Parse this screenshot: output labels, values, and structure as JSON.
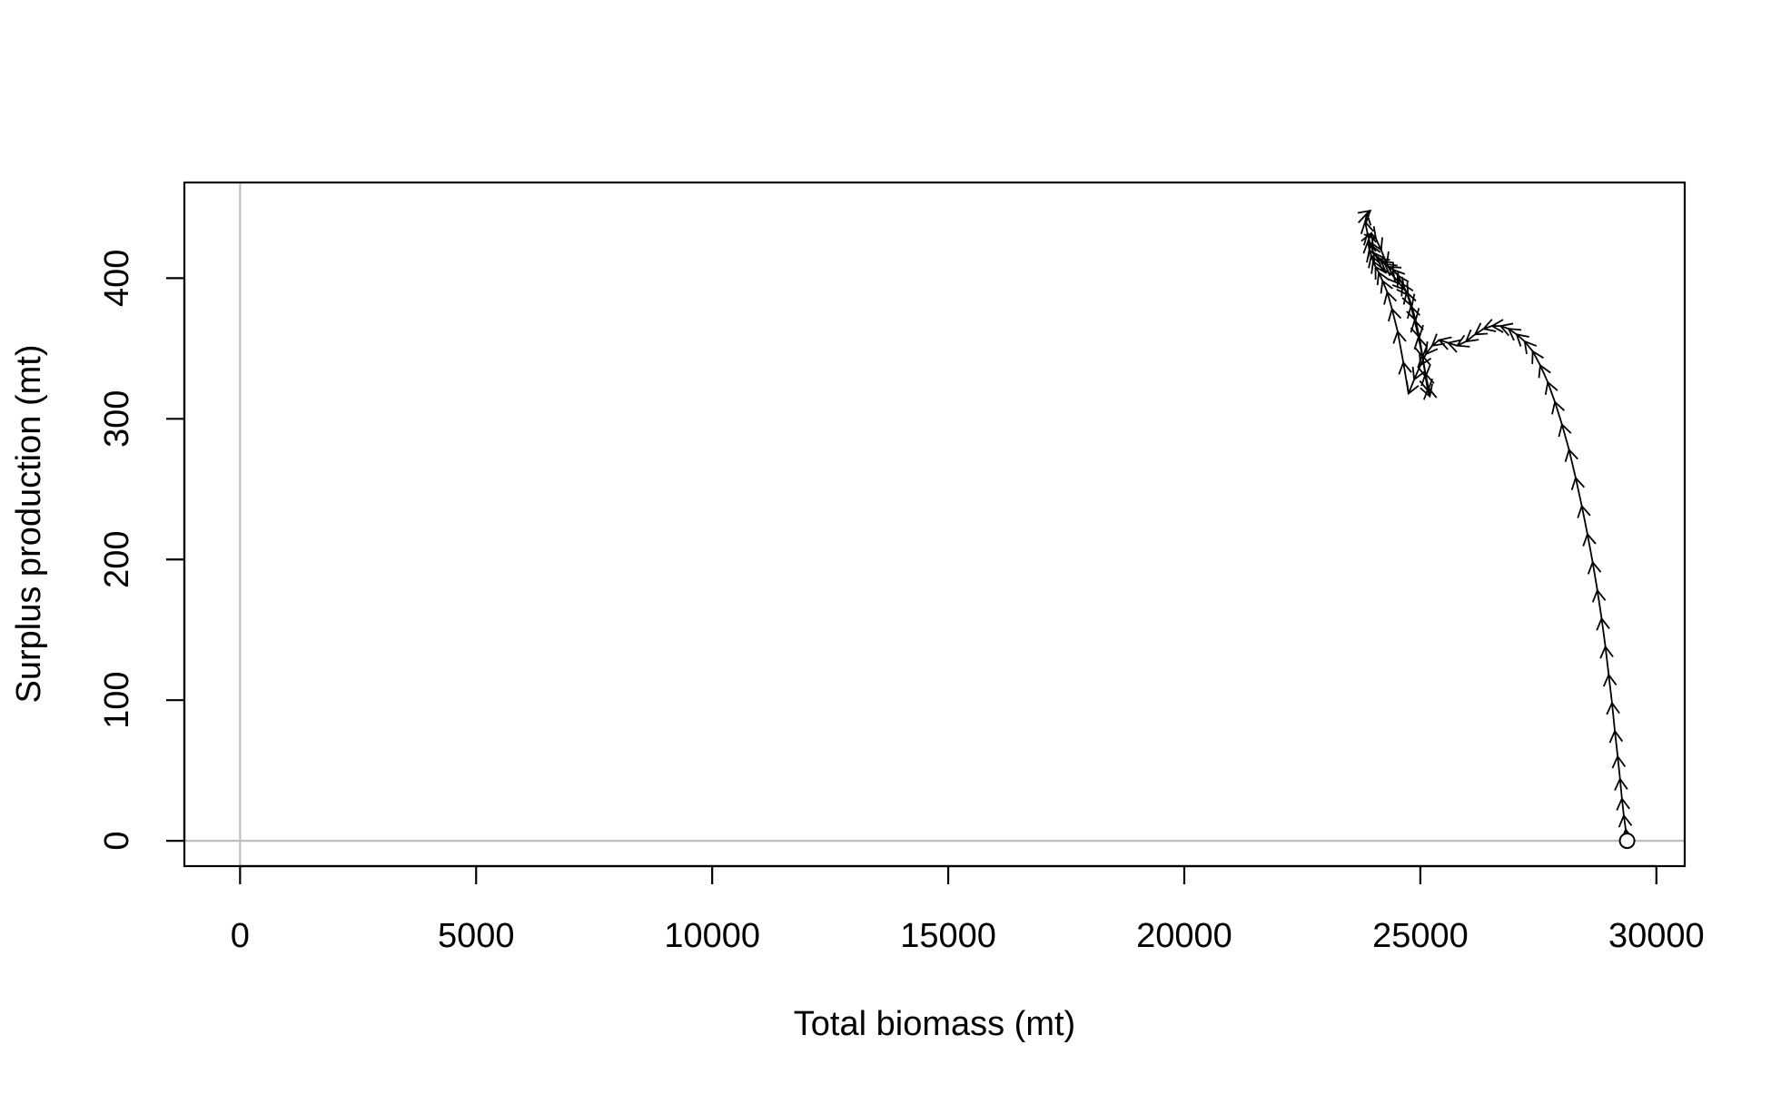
{
  "chart_data": {
    "type": "line",
    "title": "",
    "xlabel": "Total biomass (mt)",
    "ylabel": "Surplus production (mt)",
    "xlim": [
      -1180,
      30600
    ],
    "ylim": [
      -18,
      468
    ],
    "x_ticks": [
      0,
      5000,
      10000,
      15000,
      20000,
      25000,
      30000
    ],
    "y_ticks": [
      0,
      100,
      200,
      300,
      400
    ],
    "x_tick_labels": [
      "0",
      "5000",
      "10000",
      "15000",
      "20000",
      "25000",
      "30000"
    ],
    "y_tick_labels": [
      "0",
      "100",
      "200",
      "300",
      "400"
    ],
    "reference_lines": {
      "x": 0,
      "y": 0,
      "color": "#bebebe"
    },
    "grid": false,
    "legend": "none",
    "start_marker": {
      "x": 29380,
      "y": 0,
      "style": "open circle"
    },
    "series": [
      {
        "style": "arrows",
        "color": "#000000",
        "x": [
          29380,
          29350,
          29310,
          29270,
          29230,
          29180,
          29120,
          29060,
          28990,
          28920,
          28840,
          28750,
          28650,
          28540,
          28420,
          28290,
          28150,
          28000,
          27850,
          27700,
          27540,
          27380,
          27210,
          27040,
          26870,
          26700,
          26520,
          26340,
          26160,
          25970,
          25780,
          25590,
          25400,
          25250,
          25120,
          25000,
          24870,
          24750,
          24640,
          24520,
          24400,
          24300,
          24200,
          24120,
          24050,
          24000,
          23960,
          23920,
          23890,
          23960,
          24060,
          24170,
          24290,
          24420,
          24560,
          24660,
          24740,
          24820,
          24900,
          24980,
          25050,
          25110,
          25160,
          25200,
          25170,
          25110,
          25040,
          24960,
          24880,
          24800,
          24710,
          24620,
          24520,
          24420,
          24330,
          24250,
          24170,
          24090,
          24010,
          23940,
          23880,
          23830,
          23870,
          23940
        ],
        "y": [
          0,
          8,
          18,
          30,
          44,
          60,
          78,
          98,
          118,
          138,
          158,
          178,
          198,
          218,
          238,
          258,
          278,
          296,
          312,
          326,
          338,
          348,
          355,
          360,
          364,
          366,
          366,
          364,
          360,
          355,
          352,
          354,
          356,
          352,
          346,
          338,
          328,
          318,
          340,
          362,
          378,
          390,
          398,
          404,
          408,
          412,
          416,
          420,
          426,
          432,
          428,
          420,
          410,
          402,
          396,
          392,
          388,
          380,
          370,
          358,
          344,
          330,
          320,
          316,
          322,
          332,
          345,
          358,
          370,
          380,
          390,
          396,
          402,
          406,
          408,
          410,
          412,
          414,
          418,
          424,
          432,
          440,
          446,
          448
        ]
      }
    ]
  }
}
